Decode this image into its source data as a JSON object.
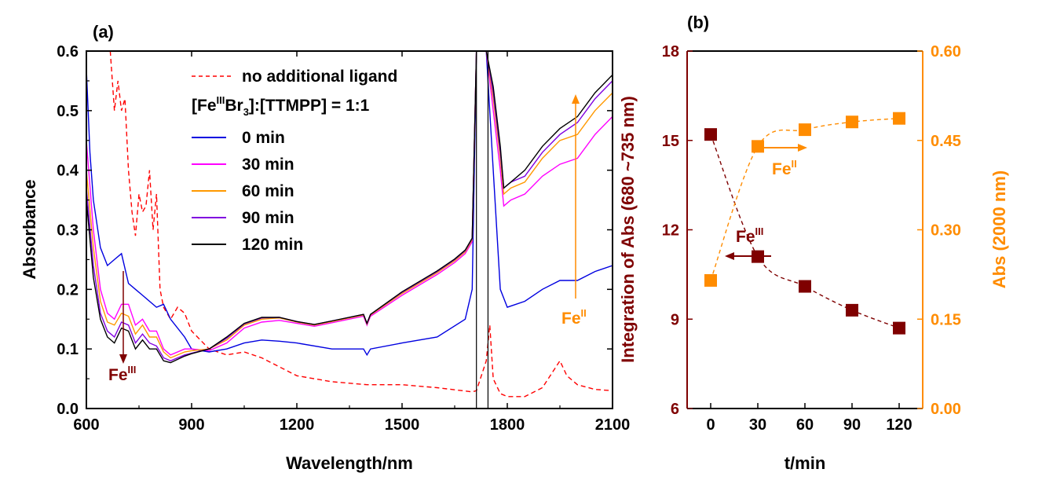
{
  "panels": {
    "a": {
      "label": "(a)"
    },
    "b": {
      "label": "(b)"
    }
  },
  "colors": {
    "dark_red": "#7f0000",
    "orange": "#ff8c00",
    "blue": "#0000e0",
    "magenta": "#ff00ff",
    "light_orange": "#ff9900",
    "purple": "#8000e0",
    "black": "#000000",
    "red": "#ff0000"
  },
  "legend": {
    "dashed": "no additional ligand",
    "header": {
      "pre": "[Fe",
      "sup": "III",
      "mid": "Br",
      "sub": "3",
      "post": "]:[TTMPP] = 1:1"
    },
    "items": [
      "0 min",
      "30 min",
      "60 min",
      "90 min",
      "120 min"
    ]
  },
  "annotations": {
    "fe3": {
      "base": "Fe",
      "sup": "III"
    },
    "fe2": {
      "base": "Fe",
      "sup": "II"
    }
  },
  "chart_data": [
    {
      "panel": "(a)",
      "type": "line",
      "xlabel": "Wavelength/nm",
      "ylabel": "Absorbance",
      "xlim": [
        600,
        2100
      ],
      "ylim": [
        0.0,
        0.6
      ],
      "xticks": [
        "600",
        "900",
        "1200",
        "1500",
        "1800",
        "2100"
      ],
      "yticks": [
        "0.0",
        "0.1",
        "0.2",
        "0.3",
        "0.4",
        "0.5",
        "0.6"
      ],
      "series": [
        {
          "name": "no additional ligand",
          "dashed": true,
          "x": [
            668,
            680,
            690,
            700,
            710,
            720,
            730,
            740,
            750,
            760,
            770,
            780,
            790,
            800,
            810,
            820,
            840,
            860,
            880,
            900,
            950,
            1000,
            1050,
            1100,
            1200,
            1300,
            1400,
            1500,
            1600,
            1700,
            1712,
            1740,
            1750,
            1760,
            1780,
            1800,
            1850,
            1900,
            1950,
            1970,
            2000,
            2050,
            2100
          ],
          "y": [
            0.6,
            0.5,
            0.55,
            0.5,
            0.52,
            0.4,
            0.33,
            0.29,
            0.36,
            0.33,
            0.34,
            0.4,
            0.3,
            0.36,
            0.2,
            0.17,
            0.15,
            0.17,
            0.16,
            0.13,
            0.1,
            0.09,
            0.095,
            0.085,
            0.055,
            0.045,
            0.04,
            0.04,
            0.035,
            0.028,
            0.03,
            0.08,
            0.14,
            0.05,
            0.025,
            0.02,
            0.02,
            0.035,
            0.08,
            0.055,
            0.04,
            0.032,
            0.03
          ]
        },
        {
          "name": "0 min",
          "x": [
            600,
            610,
            620,
            640,
            660,
            680,
            700,
            720,
            740,
            760,
            780,
            800,
            820,
            840,
            880,
            900,
            950,
            1000,
            1050,
            1100,
            1150,
            1200,
            1300,
            1390,
            1400,
            1410,
            1500,
            1600,
            1680,
            1700,
            1712,
            1740,
            1760,
            1780,
            1800,
            1850,
            1900,
            1950,
            2000,
            2050,
            2100
          ],
          "y": [
            0.57,
            0.43,
            0.35,
            0.27,
            0.24,
            0.25,
            0.26,
            0.21,
            0.2,
            0.19,
            0.18,
            0.17,
            0.175,
            0.15,
            0.12,
            0.1,
            0.095,
            0.1,
            0.11,
            0.115,
            0.113,
            0.11,
            0.1,
            0.1,
            0.09,
            0.1,
            0.11,
            0.12,
            0.15,
            0.2,
            0.6,
            0.6,
            0.4,
            0.2,
            0.17,
            0.18,
            0.2,
            0.215,
            0.215,
            0.23,
            0.24
          ]
        },
        {
          "name": "30 min",
          "x": [
            600,
            620,
            640,
            660,
            680,
            700,
            720,
            740,
            760,
            780,
            800,
            820,
            840,
            880,
            900,
            950,
            1000,
            1050,
            1100,
            1150,
            1200,
            1250,
            1300,
            1390,
            1400,
            1410,
            1500,
            1600,
            1650,
            1680,
            1700,
            1712,
            1740,
            1760,
            1780,
            1790,
            1810,
            1850,
            1900,
            1950,
            2000,
            2050,
            2100
          ],
          "y": [
            0.45,
            0.3,
            0.2,
            0.16,
            0.15,
            0.175,
            0.175,
            0.14,
            0.15,
            0.13,
            0.13,
            0.1,
            0.09,
            0.1,
            0.1,
            0.097,
            0.11,
            0.135,
            0.145,
            0.148,
            0.143,
            0.138,
            0.144,
            0.155,
            0.14,
            0.155,
            0.19,
            0.225,
            0.245,
            0.26,
            0.28,
            0.6,
            0.6,
            0.5,
            0.4,
            0.34,
            0.35,
            0.36,
            0.39,
            0.41,
            0.42,
            0.46,
            0.49
          ]
        },
        {
          "name": "60 min",
          "x": [
            600,
            620,
            640,
            660,
            680,
            700,
            720,
            740,
            760,
            780,
            800,
            820,
            840,
            880,
            900,
            950,
            1000,
            1050,
            1100,
            1150,
            1200,
            1250,
            1300,
            1390,
            1400,
            1410,
            1500,
            1600,
            1650,
            1680,
            1700,
            1712,
            1740,
            1760,
            1780,
            1790,
            1810,
            1850,
            1900,
            1950,
            2000,
            2050,
            2100
          ],
          "y": [
            0.4,
            0.27,
            0.18,
            0.145,
            0.14,
            0.16,
            0.155,
            0.125,
            0.14,
            0.12,
            0.12,
            0.095,
            0.085,
            0.095,
            0.097,
            0.1,
            0.115,
            0.14,
            0.15,
            0.152,
            0.145,
            0.14,
            0.146,
            0.157,
            0.142,
            0.157,
            0.193,
            0.228,
            0.248,
            0.263,
            0.283,
            0.6,
            0.6,
            0.52,
            0.42,
            0.36,
            0.37,
            0.38,
            0.42,
            0.45,
            0.46,
            0.5,
            0.53
          ]
        },
        {
          "name": "90 min",
          "x": [
            600,
            620,
            640,
            660,
            680,
            700,
            720,
            740,
            760,
            780,
            800,
            820,
            840,
            880,
            900,
            950,
            1000,
            1050,
            1100,
            1150,
            1200,
            1250,
            1300,
            1390,
            1400,
            1410,
            1500,
            1600,
            1650,
            1680,
            1700,
            1712,
            1740,
            1760,
            1780,
            1790,
            1810,
            1850,
            1900,
            1950,
            2000,
            2050,
            2100
          ],
          "y": [
            0.37,
            0.24,
            0.16,
            0.13,
            0.12,
            0.145,
            0.14,
            0.11,
            0.125,
            0.11,
            0.105,
            0.085,
            0.08,
            0.09,
            0.093,
            0.1,
            0.118,
            0.142,
            0.152,
            0.153,
            0.146,
            0.141,
            0.147,
            0.158,
            0.143,
            0.158,
            0.195,
            0.23,
            0.25,
            0.265,
            0.285,
            0.6,
            0.6,
            0.53,
            0.43,
            0.37,
            0.38,
            0.39,
            0.43,
            0.46,
            0.48,
            0.52,
            0.55
          ]
        },
        {
          "name": "120 min",
          "x": [
            600,
            620,
            640,
            660,
            680,
            700,
            720,
            740,
            760,
            780,
            800,
            820,
            840,
            880,
            900,
            950,
            1000,
            1050,
            1100,
            1150,
            1200,
            1250,
            1300,
            1390,
            1400,
            1410,
            1500,
            1600,
            1650,
            1680,
            1700,
            1712,
            1740,
            1760,
            1780,
            1790,
            1810,
            1850,
            1900,
            1950,
            2000,
            2050,
            2100
          ],
          "y": [
            0.35,
            0.22,
            0.15,
            0.12,
            0.11,
            0.135,
            0.13,
            0.1,
            0.115,
            0.1,
            0.1,
            0.08,
            0.077,
            0.088,
            0.092,
            0.1,
            0.12,
            0.143,
            0.153,
            0.153,
            0.146,
            0.141,
            0.147,
            0.158,
            0.143,
            0.158,
            0.196,
            0.231,
            0.251,
            0.266,
            0.286,
            0.6,
            0.6,
            0.54,
            0.44,
            0.37,
            0.38,
            0.4,
            0.44,
            0.47,
            0.49,
            0.53,
            0.56
          ]
        }
      ]
    },
    {
      "panel": "(b)",
      "type": "scatter",
      "xlabel": "t/min",
      "ylabel_left": "Integration of Abs (680 ~735 nm)",
      "ylabel_right": "Abs (2000 nm)",
      "xlim": [
        -15,
        135
      ],
      "ylim_left": [
        6,
        18
      ],
      "ylim_right": [
        0.0,
        0.6
      ],
      "xticks": [
        "0",
        "30",
        "60",
        "90",
        "120"
      ],
      "yticks_left": [
        "6",
        "9",
        "12",
        "15",
        "18"
      ],
      "yticks_right": [
        "0.00",
        "0.15",
        "0.30",
        "0.45",
        "0.60"
      ],
      "series": [
        {
          "name": "Fe(III)",
          "axis": "left",
          "x": [
            0,
            30,
            60,
            90,
            120
          ],
          "y": [
            15.2,
            11.1,
            10.1,
            9.3,
            8.7
          ]
        },
        {
          "name": "Fe(II)",
          "axis": "right",
          "x": [
            0,
            30,
            60,
            90,
            120
          ],
          "y": [
            0.215,
            0.44,
            0.468,
            0.481,
            0.487
          ]
        }
      ]
    }
  ]
}
